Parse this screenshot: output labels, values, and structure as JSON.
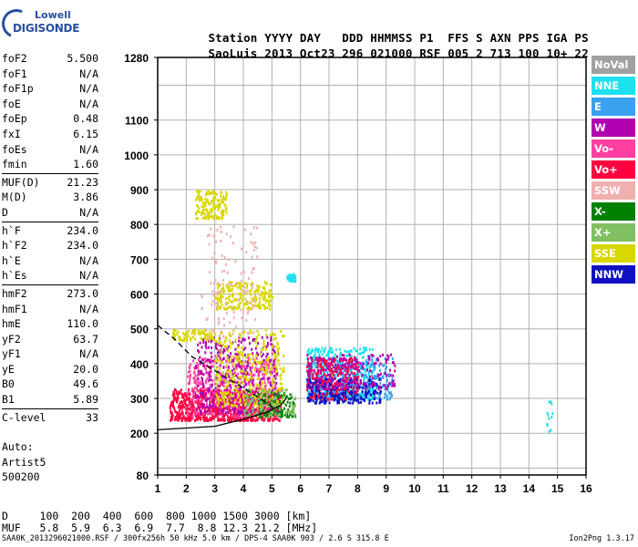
{
  "logo": {
    "line1": "Lowell",
    "line2": "DIGISONDE"
  },
  "header": {
    "labels": [
      "Station",
      "YYYY",
      "DAY",
      "DDD",
      "HHMMSS",
      "P1",
      "FFS",
      "S",
      "AXN",
      "PPS",
      "IGA",
      "PS"
    ],
    "values": [
      "SaoLuis",
      "2013",
      "Oct23",
      "296",
      "021000",
      "RSF",
      "005",
      "2",
      "713",
      "100",
      "10+",
      "22"
    ]
  },
  "params": [
    {
      "k": "foF2",
      "v": "5.500"
    },
    {
      "k": "foF1",
      "v": "N/A"
    },
    {
      "k": "foF1p",
      "v": "N/A"
    },
    {
      "k": "foE",
      "v": "N/A"
    },
    {
      "k": "foEp",
      "v": "0.48"
    },
    {
      "k": "fxI",
      "v": "6.15"
    },
    {
      "k": "foEs",
      "v": "N/A"
    },
    {
      "k": "fmin",
      "v": "1.60"
    },
    {
      "sep": true
    },
    {
      "k": "MUF(D)",
      "v": "21.23"
    },
    {
      "k": "M(D)",
      "v": "3.86"
    },
    {
      "k": "D",
      "v": "N/A"
    },
    {
      "sep": true
    },
    {
      "k": "h`F",
      "v": "234.0"
    },
    {
      "k": "h`F2",
      "v": "234.0"
    },
    {
      "k": "h`E",
      "v": "N/A"
    },
    {
      "k": "h`Es",
      "v": "N/A"
    },
    {
      "sep": true
    },
    {
      "k": "hmF2",
      "v": "273.0"
    },
    {
      "k": "hmF1",
      "v": "N/A"
    },
    {
      "k": "hmE",
      "v": "110.0"
    },
    {
      "k": "yF2",
      "v": "63.7"
    },
    {
      "k": "yF1",
      "v": "N/A"
    },
    {
      "k": "yE",
      "v": "20.0"
    },
    {
      "k": "B0",
      "v": "49.6"
    },
    {
      "k": "B1",
      "v": "5.89"
    },
    {
      "sep": true
    },
    {
      "k": "C-level",
      "v": "33"
    }
  ],
  "auto": {
    "line1": "Auto:",
    "line2": "Artist5",
    "line3": "500200"
  },
  "legend": [
    {
      "label": "NoVal",
      "color": "#a0a0a0"
    },
    {
      "label": "NNE",
      "color": "#1ee1f0"
    },
    {
      "label": "E",
      "color": "#3aa0f0"
    },
    {
      "label": "W",
      "color": "#b000b0"
    },
    {
      "label": "Vo-",
      "color": "#ff40a0"
    },
    {
      "label": "Vo+",
      "color": "#ff0040"
    },
    {
      "label": "SSW",
      "color": "#f0b0b0"
    },
    {
      "label": "X-",
      "color": "#008000"
    },
    {
      "label": "X+",
      "color": "#80c060"
    },
    {
      "label": "SSE",
      "color": "#d8d800"
    },
    {
      "label": "NNW",
      "color": "#1010c0"
    }
  ],
  "bottom": {
    "d_row": "D     100  200  400  600  800 1000 1500 3000 [km]",
    "muf_row": "MUF   5.8  5.9  6.3  6.9  7.7  8.8 12.3 21.2 [MHz]",
    "footer": "SAA0K_2013296021000.RSF / 300fx256h 50 kHz 5.0 km / DPS-4 SAA0K 903 / 2.6 S 315.8 E",
    "version": "Ion2Png 1.3.17"
  },
  "chart_data": {
    "type": "scatter",
    "xlabel": "",
    "ylabel": "",
    "xlim": [
      1,
      16
    ],
    "ylim": [
      80,
      1280
    ],
    "x_ticks": [
      1,
      2,
      3,
      4,
      5,
      6,
      7,
      8,
      9,
      10,
      11,
      12,
      13,
      14,
      15,
      16
    ],
    "y_ticks": [
      80,
      200,
      300,
      400,
      500,
      600,
      700,
      800,
      900,
      1000,
      1100,
      1280
    ],
    "grid": true,
    "clusters": [
      {
        "name": "Vo+",
        "color": "#ff0040",
        "x": [
          1.4,
          5.3
        ],
        "y": [
          240,
          330
        ],
        "n": 900
      },
      {
        "name": "Vo-",
        "color": "#ff40a0",
        "x": [
          2.0,
          5.2
        ],
        "y": [
          250,
          420
        ],
        "n": 500
      },
      {
        "name": "W",
        "color": "#b000b0",
        "x": [
          2.3,
          5.2
        ],
        "y": [
          260,
          480
        ],
        "n": 400
      },
      {
        "name": "SSE",
        "color": "#d8d800",
        "x": [
          3.0,
          5.4
        ],
        "y": [
          280,
          500
        ],
        "n": 350
      },
      {
        "name": "SSE",
        "color": "#d8d800",
        "x": [
          3.0,
          5.0
        ],
        "y": [
          560,
          640
        ],
        "n": 200
      },
      {
        "name": "SSE",
        "color": "#d8d800",
        "x": [
          2.3,
          3.4
        ],
        "y": [
          820,
          900
        ],
        "n": 150
      },
      {
        "name": "SSE",
        "color": "#d8d800",
        "x": [
          1.5,
          3.0
        ],
        "y": [
          470,
          500
        ],
        "n": 80
      },
      {
        "name": "X-",
        "color": "#008000",
        "x": [
          4.5,
          5.8
        ],
        "y": [
          250,
          320
        ],
        "n": 120
      },
      {
        "name": "X+",
        "color": "#80c060",
        "x": [
          4.0,
          5.8
        ],
        "y": [
          250,
          330
        ],
        "n": 120
      },
      {
        "name": "SSW",
        "color": "#f0b0b0",
        "x": [
          2.5,
          4.5
        ],
        "y": [
          480,
          800
        ],
        "n": 120
      },
      {
        "name": "NNE",
        "color": "#1ee1f0",
        "x": [
          6.2,
          8.6
        ],
        "y": [
          300,
          450
        ],
        "n": 450
      },
      {
        "name": "E",
        "color": "#3aa0f0",
        "x": [
          6.2,
          9.2
        ],
        "y": [
          300,
          420
        ],
        "n": 350
      },
      {
        "name": "Vo+",
        "color": "#ff0040",
        "x": [
          6.2,
          8.0
        ],
        "y": [
          300,
          420
        ],
        "n": 300
      },
      {
        "name": "NNW",
        "color": "#1010c0",
        "x": [
          6.2,
          8.8
        ],
        "y": [
          290,
          360
        ],
        "n": 200
      },
      {
        "name": "W",
        "color": "#b000b0",
        "x": [
          6.2,
          9.3
        ],
        "y": [
          330,
          430
        ],
        "n": 200
      },
      {
        "name": "NNE",
        "color": "#1ee1f0",
        "x": [
          5.5,
          5.8
        ],
        "y": [
          640,
          660
        ],
        "n": 40
      },
      {
        "name": "NNE",
        "color": "#1ee1f0",
        "x": [
          14.6,
          14.8
        ],
        "y": [
          205,
          300
        ],
        "n": 12
      }
    ],
    "traces": [
      {
        "name": "profile",
        "color": "#000000",
        "dash": false,
        "points": [
          [
            1,
            210
          ],
          [
            3,
            220
          ],
          [
            4,
            240
          ],
          [
            4.8,
            260
          ],
          [
            5.3,
            280
          ],
          [
            5.5,
            300
          ]
        ]
      },
      {
        "name": "virtual",
        "color": "#000000",
        "dash": true,
        "points": [
          [
            1,
            510
          ],
          [
            1.6,
            470
          ],
          [
            2.2,
            420
          ],
          [
            3,
            380
          ],
          [
            4,
            330
          ],
          [
            4.6,
            300
          ],
          [
            5.1,
            270
          ]
        ]
      }
    ]
  }
}
